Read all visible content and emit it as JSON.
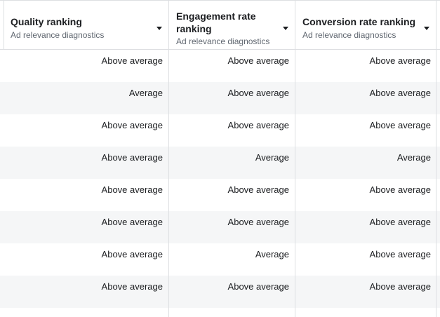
{
  "columns": [
    {
      "title": "Quality ranking",
      "subtitle": "Ad relevance diagnostics"
    },
    {
      "title": "Engagement rate ranking",
      "subtitle": "Ad relevance diagnostics"
    },
    {
      "title": "Conversion rate ranking",
      "subtitle": "Ad relevance diagnostics"
    }
  ],
  "rows": [
    [
      "Above average",
      "Above average",
      "Above average"
    ],
    [
      "Average",
      "Above average",
      "Above average"
    ],
    [
      "Above average",
      "Above average",
      "Above average"
    ],
    [
      "Above average",
      "Average",
      "Average"
    ],
    [
      "Above average",
      "Above average",
      "Above average"
    ],
    [
      "Above average",
      "Above average",
      "Above average"
    ],
    [
      "Above average",
      "Average",
      "Above average"
    ],
    [
      "Above average",
      "Above average",
      "Above average"
    ]
  ],
  "colors": {
    "border": "#dddfe2",
    "stripe": "#f5f6f7",
    "text": "#1c1e21",
    "subtext": "#606770"
  },
  "icons": {
    "sort": "caret-down-icon"
  }
}
